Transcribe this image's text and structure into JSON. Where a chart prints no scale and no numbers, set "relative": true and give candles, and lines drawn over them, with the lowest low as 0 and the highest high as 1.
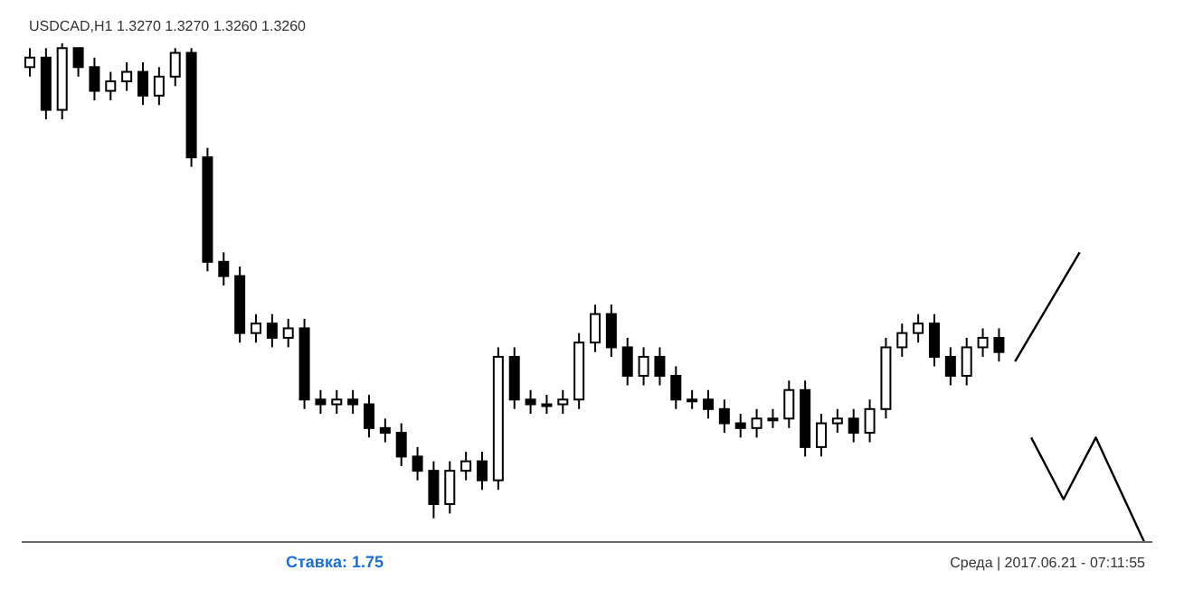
{
  "chart_data": {
    "type": "candlestick",
    "title": "USDCAD,H1 1.3270 1.3270 1.3260 1.3260",
    "relative": true,
    "color": "#000000",
    "annotations": [
      "Ставка: 1.75",
      "Среда | 2017.06.21 - 07:11:55"
    ],
    "categories": [
      null,
      null,
      null,
      null,
      null,
      null,
      null,
      null,
      null,
      null,
      null,
      null,
      null,
      null,
      null,
      null,
      null,
      null,
      null,
      null,
      null,
      null,
      null,
      null,
      null,
      null,
      null,
      null,
      null,
      null,
      null,
      null,
      null,
      null,
      null,
      null,
      null,
      null,
      null,
      null,
      null,
      null,
      null,
      null,
      null,
      null,
      null,
      null,
      null,
      null,
      null,
      null,
      null,
      null,
      null,
      null,
      null,
      null,
      null,
      null,
      null,
      null,
      null,
      null,
      null,
      null,
      null,
      null,
      null,
      null
    ],
    "ohlc": [
      [
        0.95,
        0.99,
        0.93,
        0.97
      ],
      [
        0.97,
        0.99,
        0.84,
        0.86
      ],
      [
        0.86,
        1,
        0.84,
        0.99
      ],
      [
        0.99,
        0.99,
        0.93,
        0.95
      ],
      [
        0.95,
        0.97,
        0.88,
        0.9
      ],
      [
        0.9,
        0.94,
        0.88,
        0.92
      ],
      [
        0.92,
        0.96,
        0.9,
        0.94
      ],
      [
        0.94,
        0.96,
        0.87,
        0.89
      ],
      [
        0.89,
        0.95,
        0.87,
        0.93
      ],
      [
        0.93,
        0.99,
        0.91,
        0.98
      ],
      [
        0.98,
        0.99,
        0.74,
        0.76
      ],
      [
        0.76,
        0.78,
        0.52,
        0.54
      ],
      [
        0.54,
        0.56,
        0.49,
        0.51
      ],
      [
        0.51,
        0.53,
        0.37,
        0.39
      ],
      [
        0.39,
        0.43,
        0.37,
        0.41
      ],
      [
        0.41,
        0.43,
        0.36,
        0.38
      ],
      [
        0.38,
        0.42,
        0.36,
        0.4
      ],
      [
        0.4,
        0.42,
        0.23,
        0.25
      ],
      [
        0.25,
        0.27,
        0.22,
        0.24
      ],
      [
        0.24,
        0.27,
        0.22,
        0.25
      ],
      [
        0.25,
        0.27,
        0.22,
        0.24
      ],
      [
        0.24,
        0.26,
        0.17,
        0.19
      ],
      [
        0.19,
        0.21,
        0.16,
        0.18
      ],
      [
        0.18,
        0.2,
        0.11,
        0.13
      ],
      [
        0.13,
        0.15,
        0.08,
        0.1
      ],
      [
        0.1,
        0.12,
        0,
        0.03
      ],
      [
        0.03,
        0.12,
        0.01,
        0.1
      ],
      [
        0.1,
        0.14,
        0.08,
        0.12
      ],
      [
        0.12,
        0.14,
        0.06,
        0.08
      ],
      [
        0.08,
        0.36,
        0.06,
        0.34
      ],
      [
        0.34,
        0.36,
        0.23,
        0.25
      ],
      [
        0.25,
        0.27,
        0.22,
        0.24
      ],
      [
        0.24,
        0.26,
        0.22,
        0.24
      ],
      [
        0.24,
        0.27,
        0.22,
        0.25
      ],
      [
        0.25,
        0.39,
        0.23,
        0.37
      ],
      [
        0.37,
        0.45,
        0.35,
        0.43
      ],
      [
        0.43,
        0.45,
        0.34,
        0.36
      ],
      [
        0.36,
        0.38,
        0.28,
        0.3
      ],
      [
        0.3,
        0.36,
        0.28,
        0.34
      ],
      [
        0.34,
        0.36,
        0.28,
        0.3
      ],
      [
        0.3,
        0.32,
        0.23,
        0.25
      ],
      [
        0.25,
        0.27,
        0.23,
        0.25
      ],
      [
        0.25,
        0.27,
        0.21,
        0.23
      ],
      [
        0.23,
        0.25,
        0.18,
        0.2
      ],
      [
        0.2,
        0.22,
        0.17,
        0.19
      ],
      [
        0.19,
        0.23,
        0.17,
        0.21
      ],
      [
        0.21,
        0.23,
        0.19,
        0.21
      ],
      [
        0.21,
        0.29,
        0.19,
        0.27
      ],
      [
        0.27,
        0.29,
        0.13,
        0.15
      ],
      [
        0.15,
        0.22,
        0.13,
        0.2
      ],
      [
        0.2,
        0.23,
        0.18,
        0.21
      ],
      [
        0.21,
        0.23,
        0.16,
        0.18
      ],
      [
        0.18,
        0.25,
        0.16,
        0.23
      ],
      [
        0.23,
        0.38,
        0.21,
        0.36
      ],
      [
        0.36,
        0.41,
        0.34,
        0.39
      ],
      [
        0.39,
        0.43,
        0.37,
        0.41
      ],
      [
        0.41,
        0.43,
        0.32,
        0.34
      ],
      [
        0.34,
        0.36,
        0.28,
        0.3
      ],
      [
        0.3,
        0.38,
        0.28,
        0.36
      ],
      [
        0.36,
        0.4,
        0.34,
        0.38
      ],
      [
        0.38,
        0.4,
        0.33,
        0.35
      ],
      null,
      null,
      null,
      null,
      null,
      null,
      null,
      null,
      null
    ],
    "series": [
      {
        "type": "line",
        "color": "#000000",
        "values": [
          null,
          null,
          null,
          null,
          null,
          null,
          null,
          null,
          null,
          null,
          null,
          null,
          null,
          null,
          null,
          null,
          null,
          null,
          null,
          null,
          null,
          null,
          null,
          null,
          null,
          null,
          null,
          null,
          null,
          null,
          null,
          null,
          null,
          null,
          null,
          null,
          null,
          null,
          null,
          null,
          null,
          null,
          null,
          null,
          null,
          null,
          null,
          null,
          null,
          null,
          null,
          null,
          null,
          null,
          null,
          null,
          null,
          null,
          null,
          null,
          null,
          0.33,
          null,
          null,
          null,
          0.56,
          null,
          null,
          null,
          null
        ]
      },
      {
        "type": "line",
        "color": "#000000",
        "values": [
          null,
          null,
          null,
          null,
          null,
          null,
          null,
          null,
          null,
          null,
          null,
          null,
          null,
          null,
          null,
          null,
          null,
          null,
          null,
          null,
          null,
          null,
          null,
          null,
          null,
          null,
          null,
          null,
          null,
          null,
          null,
          null,
          null,
          null,
          null,
          null,
          null,
          null,
          null,
          null,
          null,
          null,
          null,
          null,
          null,
          null,
          null,
          null,
          null,
          null,
          null,
          null,
          null,
          null,
          null,
          null,
          null,
          null,
          null,
          null,
          null,
          null,
          0.17,
          null,
          0.04,
          null,
          0.17,
          null,
          null,
          -0.05
        ]
      }
    ]
  }
}
